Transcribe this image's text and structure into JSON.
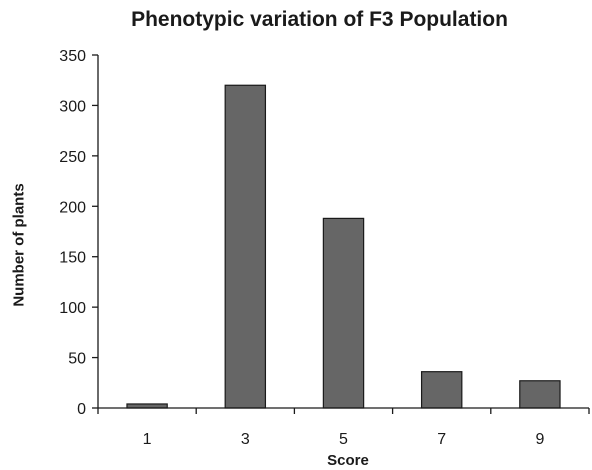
{
  "chart_data": {
    "type": "bar",
    "title": "Phenotypic variation of F3 Population",
    "xlabel": "Score",
    "ylabel": "Number of plants",
    "categories": [
      "1",
      "3",
      "5",
      "7",
      "9"
    ],
    "values": [
      4,
      320,
      188,
      36,
      27
    ],
    "ylim": [
      0,
      350
    ],
    "yticks": [
      0,
      50,
      100,
      150,
      200,
      250,
      300,
      350
    ],
    "grid": false,
    "legend": "none",
    "bar_color": "#666666",
    "bar_edge_color": "#1a1a1a"
  }
}
